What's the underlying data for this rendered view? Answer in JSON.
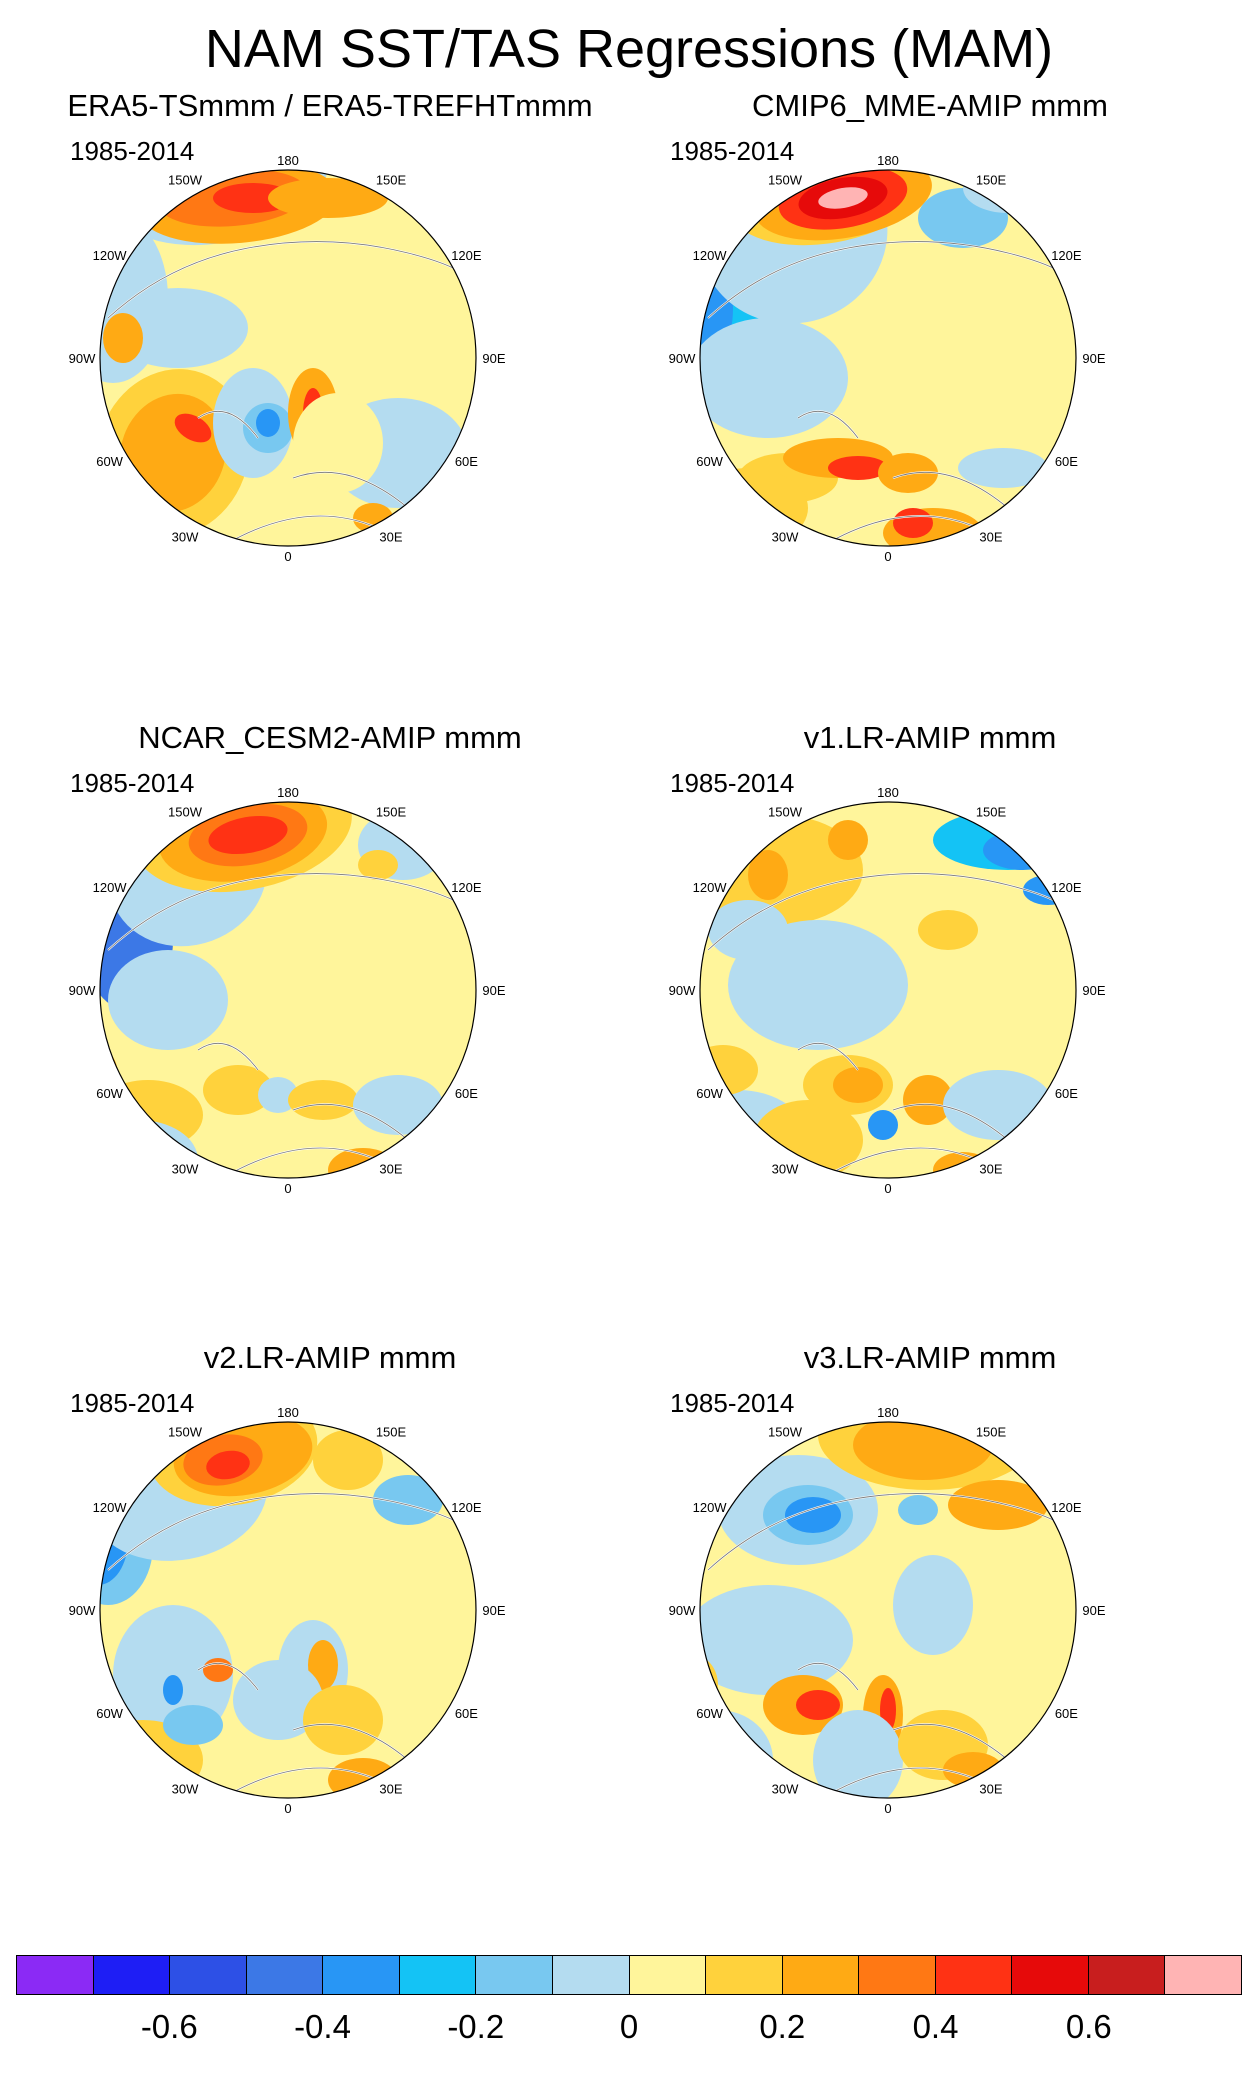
{
  "figure_title": "NAM SST/TAS Regressions (MAM)",
  "panels": [
    {
      "title": "ERA5-TSmmm / ERA5-TREFHTmmm",
      "period": "1985-2014"
    },
    {
      "title": "CMIP6_MME-AMIP  mmm",
      "period": "1985-2014"
    },
    {
      "title": "NCAR_CESM2-AMIP  mmm",
      "period": "1985-2014"
    },
    {
      "title": "v1.LR-AMIP  mmm",
      "period": "1985-2014"
    },
    {
      "title": "v2.LR-AMIP  mmm",
      "period": "1985-2014"
    },
    {
      "title": "v3.LR-AMIP  mmm",
      "period": "1985-2014"
    }
  ],
  "longitude_labels": [
    "180",
    "150E",
    "120E",
    "90E",
    "60E",
    "30E",
    "0",
    "30W",
    "60W",
    "90W",
    "120W",
    "150W"
  ],
  "colorbar": {
    "colors": [
      "#8b2af5",
      "#1e1ef5",
      "#2d50e6",
      "#3c78e6",
      "#2896f5",
      "#14c3f5",
      "#78c8f0",
      "#b4dcf0",
      "#fff59b",
      "#ffd23c",
      "#ffaa14",
      "#ff7814",
      "#ff3214",
      "#e60a0a",
      "#c81e1e",
      "#ffb4b4"
    ],
    "tick_labels": [
      "-0.6",
      "-0.4",
      "-0.2",
      "0",
      "0.2",
      "0.4",
      "0.6"
    ],
    "tick_values": [
      -0.6,
      -0.4,
      -0.2,
      0,
      0.2,
      0.4,
      0.6
    ]
  }
}
